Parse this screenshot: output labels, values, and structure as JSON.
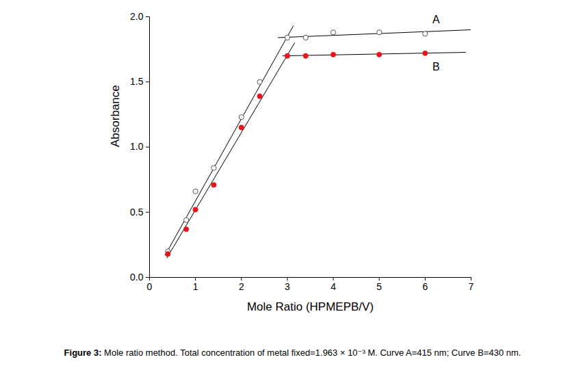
{
  "chart_data": {
    "type": "scatter",
    "caption": "Figure 3: Mole ratio method. Total concentration of metal fixed=1.963 × 10⁻³ M. Curve A=415 nm; Curve B=430 nm.",
    "xlabel": "Mole Ratio (HPMEPB/V)",
    "ylabel": "Absorbance",
    "x": [
      0.4,
      0.8,
      1,
      1.4,
      2,
      2.4,
      3,
      3.4,
      4,
      5,
      6
    ],
    "series": [
      {
        "name": "A",
        "color": "#555555",
        "marker": "open_circle",
        "values": [
          0.2,
          0.44,
          0.66,
          0.84,
          1.23,
          1.5,
          1.84,
          1.84,
          1.88,
          1.88,
          1.87
        ]
      },
      {
        "name": "B",
        "color": "#e8141c",
        "marker": "circle",
        "values": [
          0.18,
          0.37,
          0.52,
          0.71,
          1.15,
          1.39,
          1.7,
          1.7,
          1.71,
          1.71,
          1.72
        ]
      }
    ],
    "fit_lines": [
      {
        "series": "A",
        "x": [
          0.34,
          3.13
        ],
        "y": [
          0.17,
          1.93
        ]
      },
      {
        "series": "A",
        "x": [
          2.8,
          7.0
        ],
        "y": [
          1.84,
          1.9
        ]
      },
      {
        "series": "B",
        "x": [
          0.38,
          3.16
        ],
        "y": [
          0.15,
          1.8
        ]
      },
      {
        "series": "B",
        "x": [
          2.9,
          6.88
        ],
        "y": [
          1.7,
          1.727
        ]
      }
    ],
    "xlim": [
      0,
      7
    ],
    "xticks": [
      0,
      1,
      2,
      3,
      4,
      5,
      6,
      7
    ],
    "ylim": [
      0,
      2.0
    ],
    "yticks": [
      {
        "value": 0,
        "label": "0.0"
      },
      {
        "value": 0.5,
        "label": "0.5"
      },
      {
        "value": 1.0,
        "label": "1.0"
      },
      {
        "value": 1.5,
        "label": "1.5"
      },
      {
        "value": 2.0,
        "label": "2.0"
      }
    ],
    "grid": false
  }
}
